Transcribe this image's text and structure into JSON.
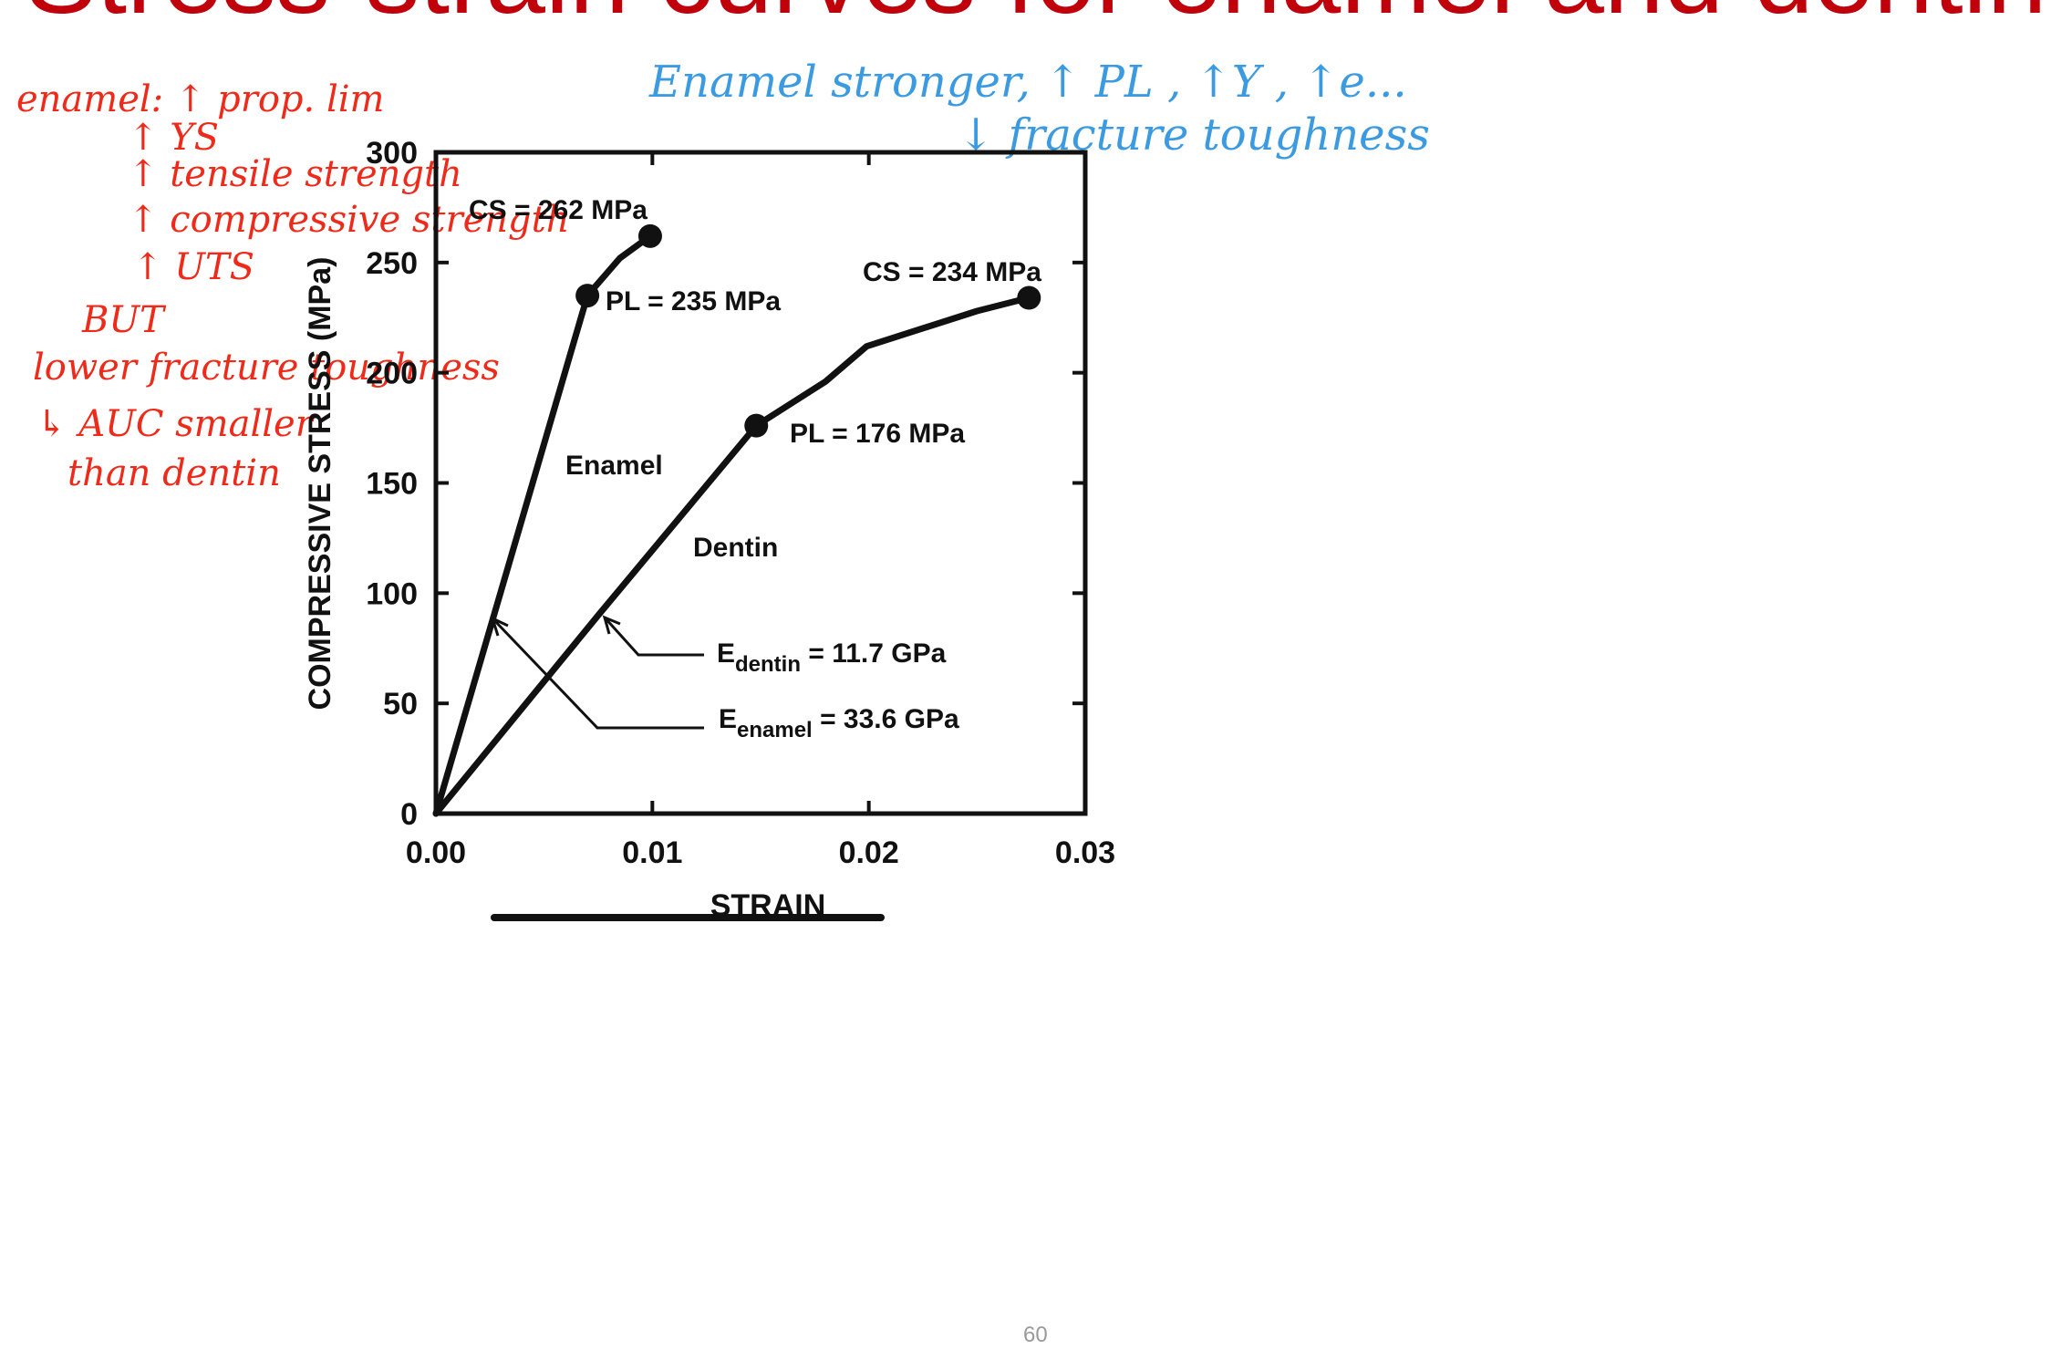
{
  "slide": {
    "title": "Stress-strain curves for enamel and dentin",
    "page_number": "60"
  },
  "annotations": {
    "left_notes": [
      "enamel:  ↑ prop. lim",
      "↑ YS",
      "↑ tensile strength",
      "↑  compressive strength",
      "↑ UTS",
      "BUT",
      "lower fracture toughness",
      "↳ AUC smaller",
      "than dentin"
    ],
    "top_notes": [
      "Enamel stronger,  ↑ PL  , ↑Y  , ↑e...",
      "↓ fracture toughness"
    ],
    "colors": {
      "red": "#ee2a1a",
      "blue": "#3c9be0",
      "title": "#c0000a"
    }
  },
  "chart_data": {
    "type": "line",
    "title": "",
    "xlabel": "STRAIN",
    "ylabel": "COMPRESSIVE STRESS (MPa)",
    "xlim": [
      0,
      0.03
    ],
    "ylim": [
      0,
      300
    ],
    "x_ticks": [
      "0.00",
      "0.01",
      "0.02",
      "0.03"
    ],
    "y_ticks": [
      "0",
      "50",
      "100",
      "150",
      "200",
      "250",
      "300"
    ],
    "x_tick_values": [
      0,
      0.01,
      0.02,
      0.03
    ],
    "y_tick_values": [
      0,
      50,
      100,
      150,
      200,
      250,
      300
    ],
    "grid": false,
    "series": [
      {
        "name": "Enamel",
        "x": [
          0,
          0.007,
          0.0085,
          0.0099
        ],
        "y": [
          0,
          235,
          252,
          262
        ],
        "markers": [
          [
            0.007,
            235
          ],
          [
            0.0099,
            262
          ]
        ]
      },
      {
        "name": "Dentin",
        "x": [
          0,
          0.0075,
          0.0148,
          0.018,
          0.0199,
          0.025,
          0.0274
        ],
        "y": [
          0,
          90,
          176,
          196,
          212,
          228,
          234
        ],
        "markers": [
          [
            0.0148,
            176
          ],
          [
            0.0274,
            234
          ]
        ]
      }
    ],
    "annotations": {
      "enamel_cs": "CS = 262 MPa",
      "enamel_pl": "PL = 235 MPa",
      "dentin_cs": "CS = 234 MPa",
      "dentin_pl": "PL =  176 MPa",
      "e_dentin_prefix": "E",
      "e_dentin_sub": "dentin",
      "e_dentin_value": " = 11.7 GPa",
      "e_enamel_prefix": "E",
      "e_enamel_sub": "enamel",
      "e_enamel_value": " = 33.6 GPa"
    }
  }
}
